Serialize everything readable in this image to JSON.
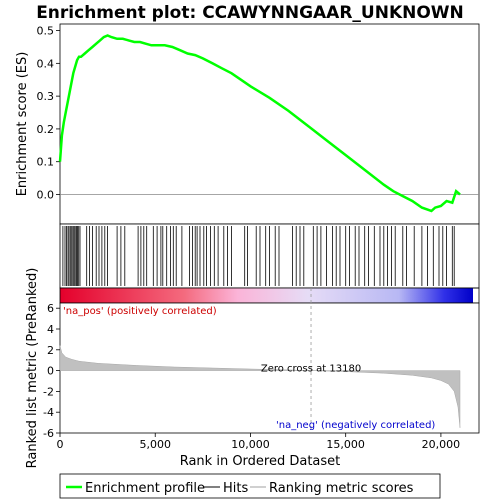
{
  "chart_data": {
    "type": "line",
    "title": "Enrichment plot: CCAWYNNGAAR_UNKNOWN",
    "xlabel": "Rank in Ordered Dataset",
    "ylabel_top": "Enrichment score (ES)",
    "ylabel_bottom": "Ranked list metric (PreRanked)",
    "x_ticks": [
      0,
      5000,
      10000,
      15000,
      20000
    ],
    "x_tick_labels": [
      "0",
      "5,000",
      "10,000",
      "15,000",
      "20,000"
    ],
    "xlim": [
      0,
      22000
    ],
    "es_ylim": [
      -0.09,
      0.52
    ],
    "es_y_ticks": [
      0.0,
      0.1,
      0.2,
      0.3,
      0.4,
      0.5
    ],
    "es_y_tick_labels": [
      "0.0",
      "0.1",
      "0.2",
      "0.3",
      "0.4",
      "0.5"
    ],
    "metric_ylim": [
      -6,
      6.5
    ],
    "metric_y_ticks": [
      -6,
      -4,
      -2,
      0,
      2,
      4,
      6
    ],
    "metric_y_tick_labels": [
      "-6",
      "-4",
      "-2",
      "0",
      "2",
      "4",
      "6"
    ],
    "enrichment_profile": {
      "name": "Enrichment profile",
      "color": "#00ff00",
      "x": [
        0,
        100,
        200,
        300,
        400,
        500,
        600,
        700,
        800,
        900,
        1000,
        1100,
        1300,
        1500,
        1700,
        1900,
        2100,
        2300,
        2500,
        2700,
        3000,
        3300,
        3600,
        3900,
        4200,
        4500,
        4800,
        5100,
        5500,
        5900,
        6300,
        6700,
        7100,
        7500,
        8000,
        8500,
        9000,
        9500,
        10000,
        11000,
        12000,
        13000,
        14000,
        15000,
        16000,
        17000,
        17500,
        18000,
        18500,
        19000,
        19500,
        19700,
        20000,
        20300,
        20600,
        20800,
        21000
      ],
      "y": [
        0.1,
        0.18,
        0.22,
        0.25,
        0.28,
        0.31,
        0.34,
        0.37,
        0.39,
        0.41,
        0.42,
        0.42,
        0.43,
        0.44,
        0.45,
        0.46,
        0.47,
        0.48,
        0.485,
        0.48,
        0.475,
        0.475,
        0.47,
        0.465,
        0.465,
        0.46,
        0.455,
        0.455,
        0.455,
        0.45,
        0.44,
        0.43,
        0.425,
        0.415,
        0.4,
        0.385,
        0.37,
        0.35,
        0.33,
        0.295,
        0.255,
        0.21,
        0.165,
        0.12,
        0.075,
        0.03,
        0.01,
        -0.005,
        -0.02,
        -0.04,
        -0.05,
        -0.04,
        -0.035,
        -0.02,
        -0.025,
        0.01,
        0.0
      ]
    },
    "hits_label": "Hits",
    "hits": [
      150,
      260,
      340,
      420,
      480,
      560,
      620,
      680,
      740,
      800,
      860,
      920,
      980,
      1050,
      1400,
      1550,
      1700,
      1900,
      2050,
      2200,
      2350,
      2500,
      3000,
      3200,
      3400,
      4100,
      4250,
      4400,
      4550,
      4900,
      5100,
      5300,
      5400,
      5600,
      5800,
      5950,
      6100,
      6400,
      6800,
      6950,
      7100,
      7200,
      7350,
      7550,
      7700,
      7900,
      8100,
      8300,
      8600,
      8800,
      9000,
      9700,
      9850,
      10300,
      10500,
      10800,
      11000,
      11300,
      11500,
      12200,
      12400,
      12600,
      12800,
      13300,
      13500,
      13700,
      14000,
      14300,
      14500,
      14700,
      15000,
      15200,
      15500,
      15700,
      16000,
      16200,
      16500,
      16800,
      17000,
      17200,
      17400,
      17600,
      18000,
      18200,
      18600,
      19000,
      19300,
      19600,
      19900,
      20100,
      20300,
      20600,
      20700
    ],
    "ranking_metric": {
      "name": "Ranking metric scores",
      "x": [
        0,
        100,
        300,
        600,
        1000,
        2000,
        4000,
        6000,
        8000,
        10000,
        12000,
        13180,
        15000,
        17000,
        18500,
        19500,
        20000,
        20400,
        20700,
        20900,
        21000
      ],
      "y": [
        2.4,
        1.7,
        1.3,
        1.1,
        0.9,
        0.7,
        0.5,
        0.35,
        0.25,
        0.15,
        0.07,
        0.0,
        -0.1,
        -0.25,
        -0.45,
        -0.7,
        -0.95,
        -1.3,
        -2.0,
        -3.5,
        -5.5
      ]
    },
    "zero_cross": 13180,
    "zero_cross_label": "Zero cross at 13180",
    "pos_label": "'na_pos' (positively correlated)",
    "neg_label": "'na_neg' (negatively correlated)",
    "legend_position": "bottom",
    "legend": [
      "Enrichment profile",
      "Hits",
      "Ranking metric scores"
    ],
    "grid": false
  }
}
